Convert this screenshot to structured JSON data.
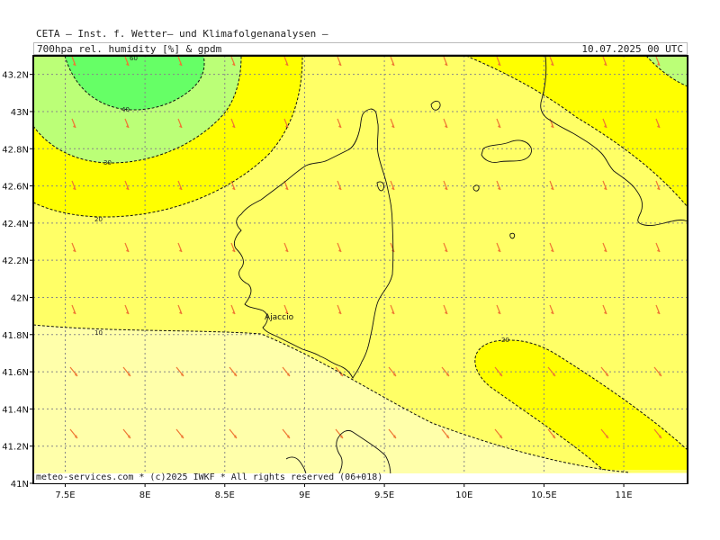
{
  "header": {
    "org_line": "CETA — Inst. f. Wetter— und Klimafolgenanalysen —",
    "subtitle_left": "700hpa rel. humidity [%] & gpdm",
    "subtitle_right": "10.07.2025 00 UTC"
  },
  "footer": {
    "credit": "meteo-services.com * (c)2025 IWKF * All rights reserved (06+018)"
  },
  "map": {
    "lon_range": [
      7.3,
      11.4
    ],
    "lat_range": [
      41.0,
      43.3
    ],
    "lon_ticks": [
      {
        "value": 7.5,
        "label": "7.5E"
      },
      {
        "value": 8.0,
        "label": "8E"
      },
      {
        "value": 8.5,
        "label": "8.5E"
      },
      {
        "value": 9.0,
        "label": "9E"
      },
      {
        "value": 9.5,
        "label": "9.5E"
      },
      {
        "value": 10.0,
        "label": "10E"
      },
      {
        "value": 10.5,
        "label": "10.5E"
      },
      {
        "value": 11.0,
        "label": "11E"
      }
    ],
    "lat_ticks": [
      {
        "value": 41.0,
        "label": "41N"
      },
      {
        "value": 41.2,
        "label": "41.2N"
      },
      {
        "value": 41.4,
        "label": "41.4N"
      },
      {
        "value": 41.6,
        "label": "41.6N"
      },
      {
        "value": 41.8,
        "label": "41.8N"
      },
      {
        "value": 42.0,
        "label": "42N"
      },
      {
        "value": 42.2,
        "label": "42.2N"
      },
      {
        "value": 42.4,
        "label": "42.4N"
      },
      {
        "value": 42.6,
        "label": "42.6N"
      },
      {
        "value": 42.8,
        "label": "42.8N"
      },
      {
        "value": 43.0,
        "label": "43N"
      },
      {
        "value": 43.2,
        "label": "43.2N"
      }
    ],
    "contour_labels": [
      "10",
      "20",
      "30",
      "40",
      "60",
      "20"
    ],
    "places": [
      {
        "name": "Ajaccio",
        "lon": 8.74,
        "lat": 41.92
      }
    ],
    "colors": {
      "rh_lt10": "#ffffaa",
      "rh_10_20": "#ffff66",
      "rh_20_30": "#ffff00",
      "rh_30_40": "#bbff77",
      "rh_40_60": "#66ff66",
      "grid": "#888888",
      "wind_arrow": "#ee7733",
      "coast": "#111111"
    }
  }
}
